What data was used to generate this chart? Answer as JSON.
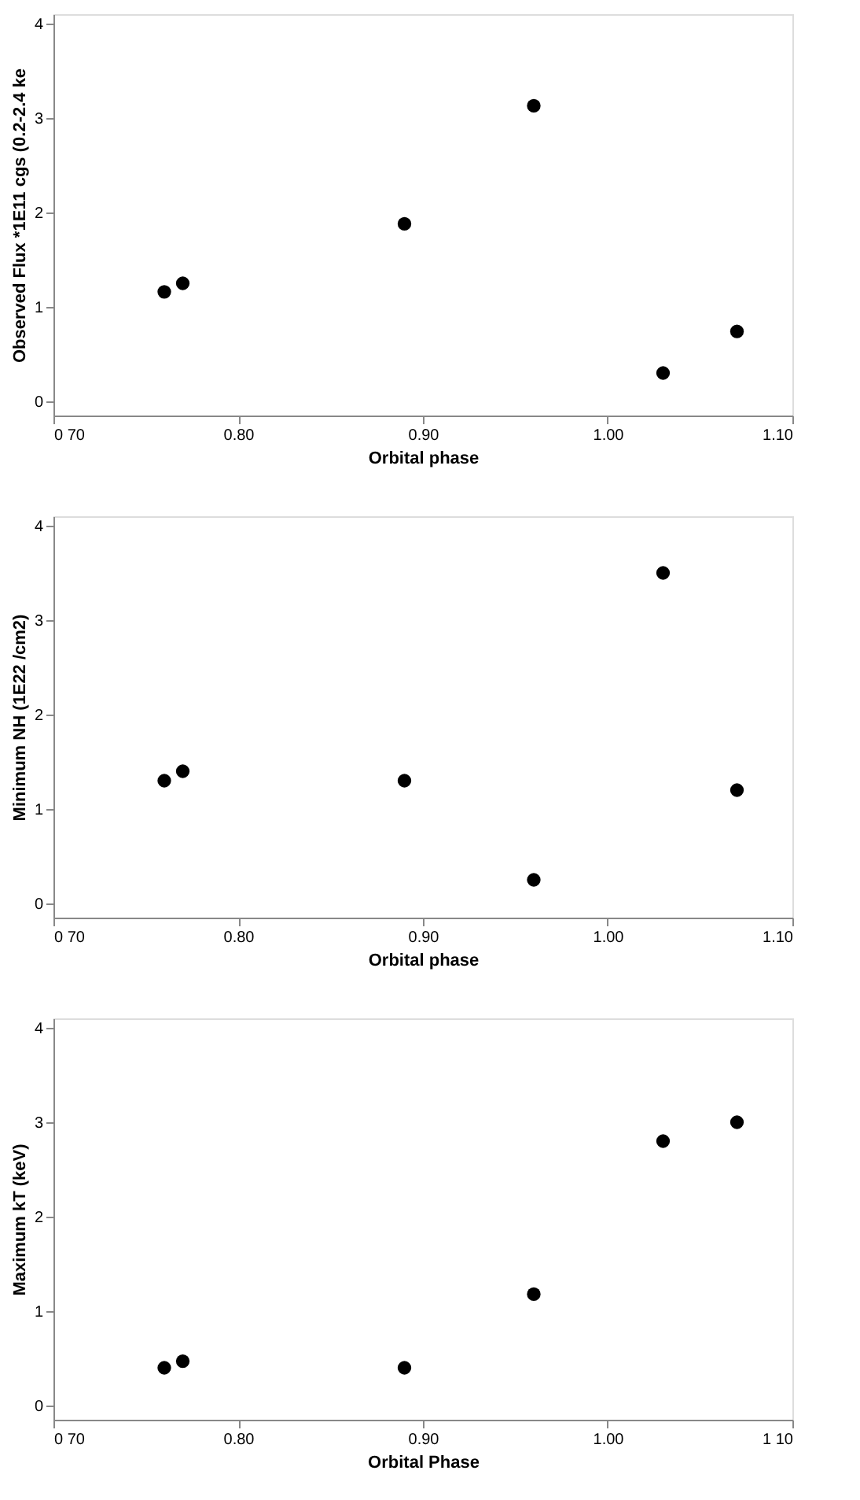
{
  "chart_data": [
    {
      "type": "scatter",
      "xlabel": "Orbital phase",
      "ylabel": "Observed Flux *1E11 cgs (0.2-2.4 ke",
      "x": [
        0.76,
        0.77,
        0.89,
        0.96,
        1.03,
        1.07
      ],
      "values": [
        1.16,
        1.25,
        1.88,
        3.13,
        0.3,
        0.74
      ],
      "color": "#000000",
      "marker": "circle",
      "grid": false,
      "xlim": [
        0.7,
        1.1
      ],
      "xticks": [
        {
          "value": 0.7,
          "label": "0 70"
        },
        {
          "value": 0.8,
          "label": "0.80"
        },
        {
          "value": 0.9,
          "label": "0.90"
        },
        {
          "value": 1.0,
          "label": "1.00"
        },
        {
          "value": 1.1,
          "label": "1.10"
        }
      ],
      "ylim": [
        -0.15,
        4.1
      ],
      "yticks": [
        0,
        1,
        2,
        3,
        4
      ]
    },
    {
      "type": "scatter",
      "xlabel": "Orbital phase",
      "ylabel": "Minimum NH (1E22 /cm2)",
      "x": [
        0.76,
        0.77,
        0.89,
        0.96,
        1.03,
        1.07
      ],
      "values": [
        1.3,
        1.4,
        1.3,
        0.25,
        3.5,
        1.2
      ],
      "color": "#000000",
      "marker": "circle",
      "grid": false,
      "xlim": [
        0.7,
        1.1
      ],
      "xticks": [
        {
          "value": 0.7,
          "label": "0 70"
        },
        {
          "value": 0.8,
          "label": "0.80"
        },
        {
          "value": 0.9,
          "label": "0.90"
        },
        {
          "value": 1.0,
          "label": "1.00"
        },
        {
          "value": 1.1,
          "label": "1.10"
        }
      ],
      "ylim": [
        -0.15,
        4.1
      ],
      "yticks": [
        0,
        1,
        2,
        3,
        4
      ]
    },
    {
      "type": "scatter",
      "xlabel": "Orbital Phase",
      "ylabel": "Maximum kT (keV)",
      "x": [
        0.76,
        0.77,
        0.89,
        0.96,
        1.03,
        1.07
      ],
      "values": [
        0.4,
        0.47,
        0.4,
        1.18,
        2.8,
        3.0
      ],
      "color": "#000000",
      "marker": "circle",
      "grid": false,
      "xlim": [
        0.7,
        1.1
      ],
      "xticks": [
        {
          "value": 0.7,
          "label": "0 70"
        },
        {
          "value": 0.8,
          "label": "0.80"
        },
        {
          "value": 0.9,
          "label": "0.90"
        },
        {
          "value": 1.0,
          "label": "1.00"
        },
        {
          "value": 1.1,
          "label": "1 10"
        }
      ],
      "ylim": [
        -0.15,
        4.1
      ],
      "yticks": [
        0,
        1,
        2,
        3,
        4
      ]
    }
  ]
}
